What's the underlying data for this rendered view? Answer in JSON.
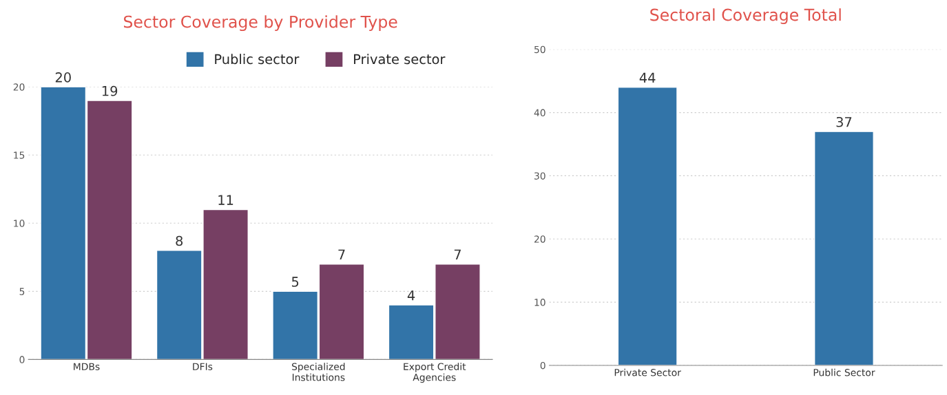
{
  "chart_data": [
    {
      "type": "bar",
      "title": "Sector Coverage by Provider Type",
      "categories": [
        "MDBs",
        "DFIs",
        "Specialized\nInstitutions",
        "Export Credit\nAgencies"
      ],
      "series": [
        {
          "name": "Public sector",
          "color": "#3274a8",
          "values": [
            20,
            8,
            5,
            4
          ]
        },
        {
          "name": "Private sector",
          "color": "#763f63",
          "values": [
            19,
            11,
            7,
            7
          ]
        }
      ],
      "ylim": [
        0,
        20
      ],
      "yticks": [
        0,
        5,
        10,
        15,
        20
      ],
      "grid": "y",
      "legend": "top",
      "data_labels": true
    },
    {
      "type": "bar",
      "title": "Sectoral Coverage Total",
      "categories": [
        "Private Sector",
        "Public Sector"
      ],
      "series": [
        {
          "color": "#3274a8",
          "values": [
            44,
            37
          ]
        }
      ],
      "ylim": [
        0,
        50
      ],
      "yticks": [
        0,
        10,
        20,
        30,
        40,
        50
      ],
      "grid": "y",
      "data_labels": true
    }
  ]
}
